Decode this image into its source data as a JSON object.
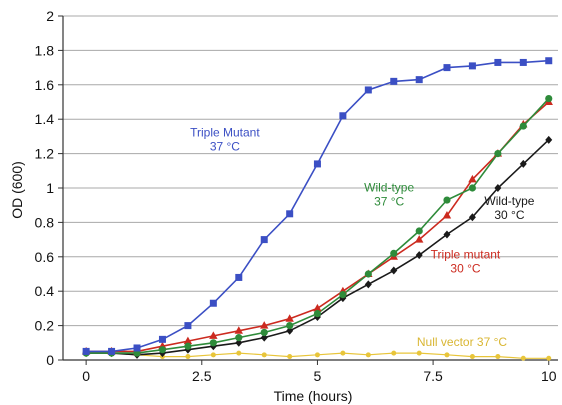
{
  "chart_data": {
    "type": "line",
    "title": "",
    "xlabel": "Time (hours)",
    "ylabel": "OD (600)",
    "xlim": [
      -0.5,
      10.2
    ],
    "ylim": [
      0,
      2
    ],
    "x_ticks": [
      0,
      2.5,
      5,
      7.5,
      10
    ],
    "x_tick_labels": [
      "0",
      "2.5",
      "5",
      "7.5",
      "10"
    ],
    "y_ticks": [
      0,
      0.2,
      0.4,
      0.6,
      0.8,
      1,
      1.2,
      1.4,
      1.6,
      1.8,
      2
    ],
    "y_tick_labels": [
      "0",
      "0.2",
      "0.4",
      "0.6",
      "0.8",
      "1",
      "1.2",
      "1.4",
      "1.6",
      "1.8",
      "2"
    ],
    "grid": "horizontal",
    "legend": "none",
    "series": [
      {
        "name": "Triple Mutant 37 °C",
        "color": "#3b4fc4",
        "marker": "square",
        "x": [
          0,
          0.55,
          1.1,
          1.65,
          2.2,
          2.75,
          3.3,
          3.85,
          4.4,
          5.0,
          5.55,
          6.1,
          6.65,
          7.2,
          7.8,
          8.35,
          8.9,
          9.45,
          10.0
        ],
        "y": [
          0.05,
          0.05,
          0.07,
          0.12,
          0.2,
          0.33,
          0.48,
          0.7,
          0.85,
          1.14,
          1.42,
          1.57,
          1.62,
          1.63,
          1.7,
          1.71,
          1.73,
          1.73,
          1.74
        ]
      },
      {
        "name": "Wild-type 37 °C",
        "color": "#2e8b3a",
        "marker": "circle",
        "x": [
          0,
          0.55,
          1.1,
          1.65,
          2.2,
          2.75,
          3.3,
          3.85,
          4.4,
          5.0,
          5.55,
          6.1,
          6.65,
          7.2,
          7.8,
          8.35,
          8.9,
          9.45,
          10.0
        ],
        "y": [
          0.04,
          0.04,
          0.04,
          0.06,
          0.08,
          0.1,
          0.13,
          0.16,
          0.2,
          0.27,
          0.38,
          0.5,
          0.62,
          0.75,
          0.93,
          1.0,
          1.2,
          1.36,
          1.52
        ]
      },
      {
        "name": "Triple mutant 30 °C",
        "color": "#cc2a1f",
        "marker": "triangle",
        "x": [
          0,
          0.55,
          1.1,
          1.65,
          2.2,
          2.75,
          3.3,
          3.85,
          4.4,
          5.0,
          5.55,
          6.1,
          6.65,
          7.2,
          7.8,
          8.35,
          8.9,
          9.45,
          10.0
        ],
        "y": [
          0.05,
          0.05,
          0.05,
          0.08,
          0.11,
          0.14,
          0.17,
          0.2,
          0.24,
          0.3,
          0.4,
          0.5,
          0.6,
          0.7,
          0.84,
          1.05,
          1.2,
          1.37,
          1.5
        ]
      },
      {
        "name": "Wild-type 30 °C",
        "color": "#1a1a1a",
        "marker": "diamond",
        "x": [
          0,
          0.55,
          1.1,
          1.65,
          2.2,
          2.75,
          3.3,
          3.85,
          4.4,
          5.0,
          5.55,
          6.1,
          6.65,
          7.2,
          7.8,
          8.35,
          8.9,
          9.45,
          10.0
        ],
        "y": [
          0.04,
          0.04,
          0.03,
          0.04,
          0.06,
          0.08,
          0.1,
          0.13,
          0.17,
          0.25,
          0.36,
          0.44,
          0.52,
          0.61,
          0.73,
          0.83,
          1.0,
          1.14,
          1.28
        ]
      },
      {
        "name": "Null vector 37 °C",
        "color": "#e8c53a",
        "marker": "circle",
        "x": [
          0,
          0.55,
          1.1,
          1.65,
          2.2,
          2.75,
          3.3,
          3.85,
          4.4,
          5.0,
          5.55,
          6.1,
          6.65,
          7.2,
          7.8,
          8.35,
          8.9,
          9.45,
          10.0
        ],
        "y": [
          0.05,
          0.04,
          0.03,
          0.02,
          0.02,
          0.03,
          0.04,
          0.03,
          0.02,
          0.03,
          0.04,
          0.03,
          0.04,
          0.04,
          0.03,
          0.02,
          0.02,
          0.01,
          0.01
        ]
      }
    ],
    "annotations": [
      {
        "series": 0,
        "lines": [
          "Triple Mutant",
          "37 °C"
        ],
        "color": "#3b4fc4",
        "anchor": "middle",
        "at": [
          3.0,
          1.3
        ]
      },
      {
        "series": 1,
        "lines": [
          "Wild-type",
          "37 °C"
        ],
        "color": "#2e8b3a",
        "anchor": "middle",
        "at": [
          6.55,
          0.98
        ]
      },
      {
        "series": 3,
        "lines": [
          "Wild-type",
          "30 °C"
        ],
        "color": "#1a1a1a",
        "anchor": "middle",
        "at": [
          9.15,
          0.9
        ]
      },
      {
        "series": 2,
        "lines": [
          "Triple mutant",
          "30 °C"
        ],
        "color": "#cc2a1f",
        "anchor": "middle",
        "at": [
          8.2,
          0.59
        ]
      },
      {
        "series": 4,
        "lines": [
          "Null vector 37 °C"
        ],
        "color": "#d9b632",
        "anchor": "start",
        "at": [
          7.15,
          0.08
        ]
      }
    ]
  }
}
